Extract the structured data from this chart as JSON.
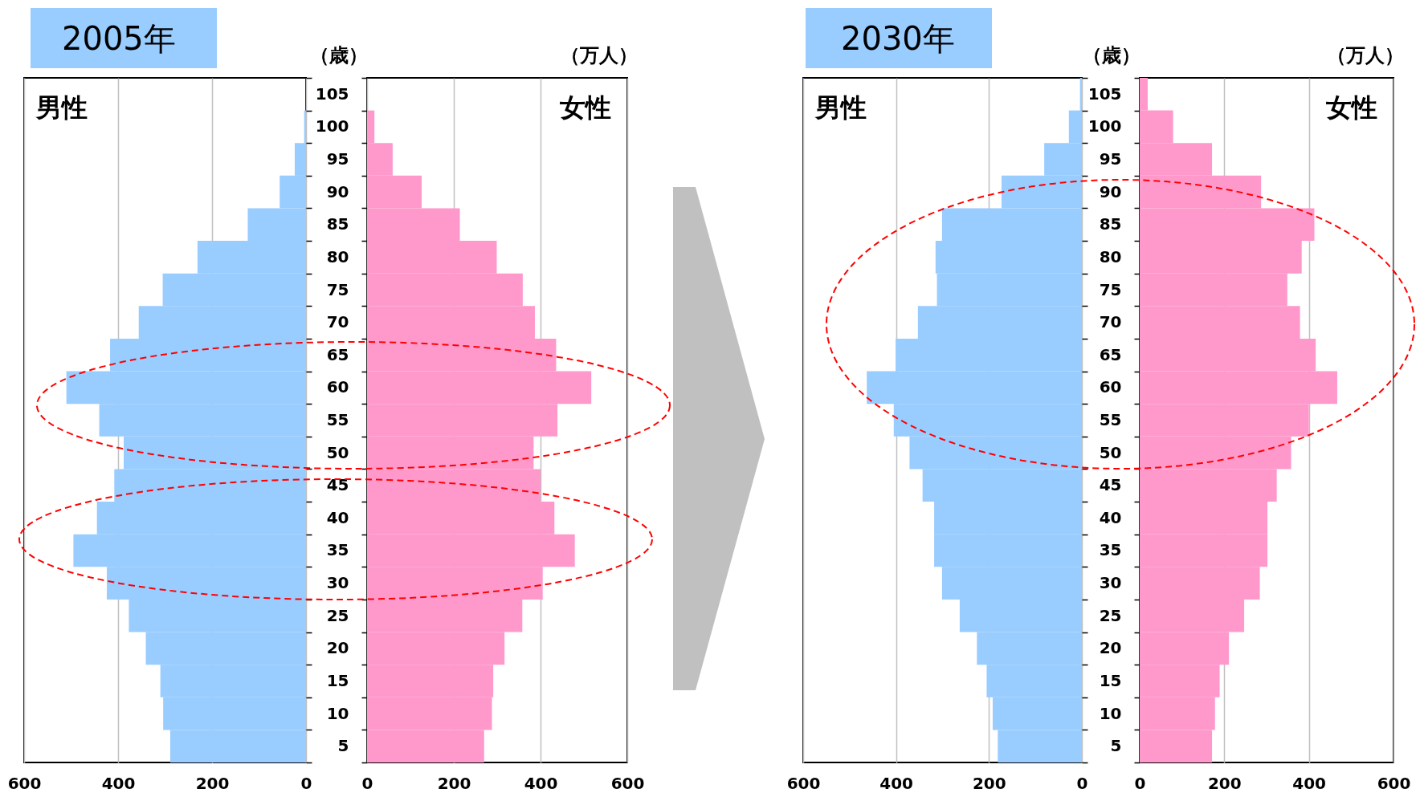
{
  "chart_data": [
    {
      "type": "bar",
      "orientation": "horizontal",
      "title": "2005年",
      "categories": [
        "105",
        "100",
        "95",
        "90",
        "85",
        "80",
        "75",
        "70",
        "65",
        "60",
        "55",
        "50",
        "45",
        "40",
        "35",
        "30",
        "25",
        "20",
        "15",
        "10",
        "5"
      ],
      "series": [
        {
          "name": "男性",
          "color": "#99ccff",
          "values": [
            0,
            4,
            24,
            56,
            124,
            231,
            305,
            356,
            417,
            510,
            440,
            388,
            408,
            445,
            495,
            424,
            377,
            341,
            310,
            304,
            289
          ]
        }
      ],
      "xlim": [
        600,
        0
      ],
      "xticks": [
        600,
        400,
        200,
        0
      ],
      "grid": "x",
      "tick_labels": "x"
    },
    {
      "type": "bar",
      "orientation": "horizontal",
      "ylabel": "（歳）",
      "xlabel": "（万人）",
      "categories": [
        "105",
        "100",
        "95",
        "90",
        "85",
        "80",
        "75",
        "70",
        "65",
        "60",
        "55",
        "50",
        "45",
        "40",
        "35",
        "30",
        "25",
        "20",
        "15",
        "10",
        "5"
      ],
      "series": [
        {
          "name": "女性",
          "color": "#ff99cc",
          "values": [
            0,
            17,
            59,
            126,
            214,
            299,
            359,
            387,
            436,
            517,
            439,
            384,
            400,
            432,
            479,
            405,
            358,
            317,
            291,
            288,
            270
          ]
        }
      ],
      "xlim": [
        0,
        600
      ],
      "xticks": [
        0,
        200,
        400,
        600
      ],
      "grid": "x"
    },
    {
      "type": "bar",
      "orientation": "horizontal",
      "title": "2030年",
      "categories": [
        "105",
        "100",
        "95",
        "90",
        "85",
        "80",
        "75",
        "70",
        "65",
        "60",
        "55",
        "50",
        "45",
        "40",
        "35",
        "30",
        "25",
        "20",
        "15",
        "10",
        "5"
      ],
      "series": [
        {
          "name": "男性",
          "color": "#99ccff",
          "values": [
            4,
            28,
            81,
            173,
            301,
            315,
            312,
            353,
            401,
            463,
            405,
            371,
            343,
            318,
            318,
            301,
            263,
            226,
            205,
            192,
            181
          ]
        }
      ],
      "xlim": [
        600,
        0
      ],
      "xticks": [
        600,
        400,
        200,
        0
      ],
      "grid": "x",
      "tick_labels": "x"
    },
    {
      "type": "bar",
      "orientation": "horizontal",
      "ylabel": "（歳）",
      "xlabel": "（万人）",
      "categories": [
        "105",
        "100",
        "95",
        "90",
        "85",
        "80",
        "75",
        "70",
        "65",
        "60",
        "55",
        "50",
        "45",
        "40",
        "35",
        "30",
        "25",
        "20",
        "15",
        "10",
        "5"
      ],
      "series": [
        {
          "name": "女性",
          "color": "#ff99cc",
          "values": [
            19,
            79,
            171,
            287,
            413,
            383,
            349,
            379,
            416,
            467,
            400,
            358,
            324,
            302,
            302,
            284,
            247,
            211,
            189,
            178,
            171
          ]
        }
      ],
      "xlim": [
        0,
        600
      ],
      "xticks": [
        0,
        200,
        400,
        600
      ],
      "grid": "x"
    }
  ]
}
